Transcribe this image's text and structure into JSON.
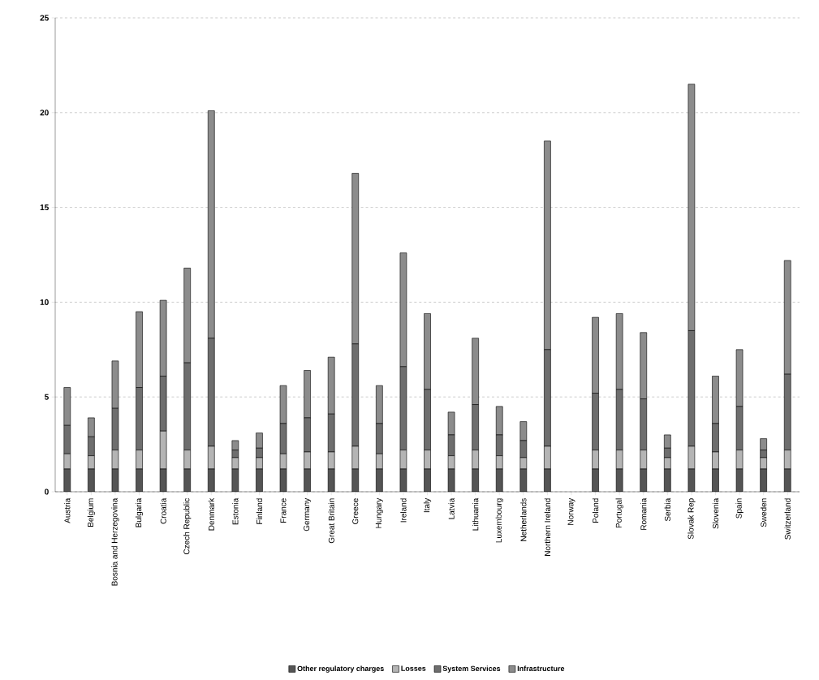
{
  "chart_data": {
    "type": "bar",
    "stacked": true,
    "categories": [
      "Austria",
      "Belgium",
      "Bosnia and Herzegovina",
      "Bulgaria",
      "Croatia",
      "Czech Republic",
      "Denmark",
      "Estonia",
      "Finland",
      "France",
      "Germany",
      "Great Britain",
      "Greece",
      "Hungary",
      "Ireland",
      "Italy",
      "Latvia",
      "Lithuania",
      "Luxembourg",
      "Netherlands",
      "Northern Ireland",
      "Norway",
      "Poland",
      "Portugal",
      "Romania",
      "Serbia",
      "Slovak Rep",
      "Slovenia",
      "Spain",
      "Sweden",
      "Switzerland"
    ],
    "series": [
      {
        "name": "Other regulatory charges",
        "color": "#555555",
        "values": [
          1.2,
          1.2,
          1.2,
          1.2,
          1.2,
          1.2,
          1.2,
          1.2,
          1.2,
          1.2,
          1.2,
          1.2,
          1.2,
          1.2,
          1.2,
          1.2,
          1.2,
          1.2,
          1.2,
          1.2,
          1.2,
          0,
          1.2,
          1.2,
          1.2,
          1.2,
          1.2,
          1.2,
          1.2,
          1.2,
          1.2
        ]
      },
      {
        "name": "Losses",
        "color": "#b4b4b4",
        "values": [
          0.8,
          0.7,
          1.0,
          1.0,
          2.0,
          1.0,
          1.2,
          0.6,
          0.6,
          0.8,
          0.9,
          0.9,
          1.2,
          0.8,
          1.0,
          1.0,
          0.7,
          1.0,
          0.7,
          0.6,
          1.2,
          0,
          1.0,
          1.0,
          1.0,
          0.6,
          1.2,
          0.9,
          1.0,
          0.6,
          1.0
        ]
      },
      {
        "name": "System Services",
        "color": "#6e6e6e",
        "values": [
          1.5,
          1.0,
          2.2,
          3.3,
          2.9,
          4.6,
          5.7,
          0.4,
          0.5,
          1.6,
          1.8,
          2.0,
          5.4,
          1.6,
          4.4,
          3.2,
          1.1,
          2.4,
          1.1,
          0.9,
          5.1,
          0,
          3.0,
          3.2,
          2.7,
          0.5,
          6.1,
          1.5,
          2.3,
          0.4,
          4.0
        ]
      },
      {
        "name": "Infrastructure",
        "color": "#8c8c8c",
        "values": [
          2.0,
          1.0,
          2.5,
          4.0,
          4.0,
          5.0,
          12.0,
          0.5,
          0.8,
          2.0,
          2.5,
          3.0,
          9.0,
          2.0,
          6.0,
          4.0,
          1.2,
          3.5,
          1.5,
          1.0,
          11.0,
          0,
          4.0,
          4.0,
          3.5,
          0.7,
          13.0,
          2.5,
          3.0,
          0.6,
          6.0
        ]
      }
    ],
    "ylim": [
      0,
      25
    ],
    "yticks": [
      0,
      5,
      10,
      15,
      20,
      25
    ],
    "grid": "y",
    "legend": "bottom"
  }
}
